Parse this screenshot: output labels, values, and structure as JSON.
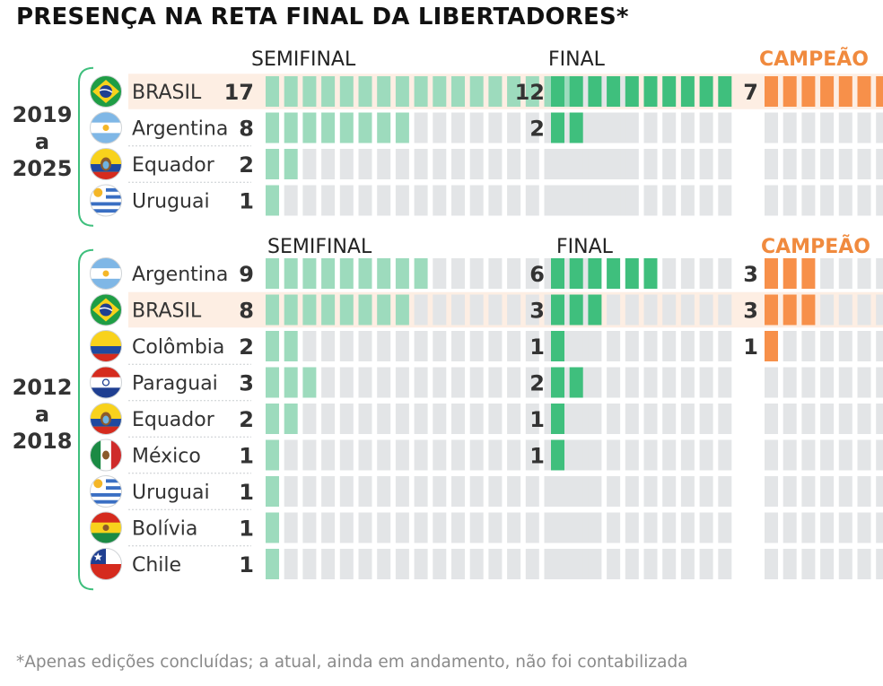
{
  "title": "PRESENÇA NA RETA FINAL DA LIBERTADORES*",
  "footnote": "*Apenas edições concluídas; a atual, ainda em andamento, não foi contabilizada",
  "colors": {
    "semifinal": "#9ddbbd",
    "final": "#3fbf7d",
    "campeao": "#f7904a",
    "campeao_label": "#f08a3e",
    "empty": "#e3e5e7",
    "highlight": "#fdeee3",
    "bracket": "#3fbf7d",
    "text": "#333333"
  },
  "chart_data": [
    {
      "type": "bar",
      "period": [
        "2019",
        "a",
        "2025"
      ],
      "column_labels": [
        "SEMIFINAL",
        "FINAL",
        "CAMPEÃO"
      ],
      "grid": {
        "semifinal": 20,
        "final": 10,
        "campeao": 8
      },
      "rows": [
        {
          "country": "BRASIL",
          "flag": "brazil-flag-icon",
          "highlight": true,
          "semifinal": 17,
          "final": 12,
          "campeao": 7
        },
        {
          "country": "Argentina",
          "flag": "argentina-flag-icon",
          "highlight": false,
          "semifinal": 8,
          "final": 2,
          "campeao": null
        },
        {
          "country": "Equador",
          "flag": "ecuador-flag-icon",
          "highlight": false,
          "semifinal": 2,
          "final": null,
          "campeao": null
        },
        {
          "country": "Uruguai",
          "flag": "uruguay-flag-icon",
          "highlight": false,
          "semifinal": 1,
          "final": null,
          "campeao": null
        }
      ]
    },
    {
      "type": "bar",
      "period": [
        "2012",
        "a",
        "2018"
      ],
      "column_labels": [
        "SEMIFINAL",
        "FINAL",
        "CAMPEÃO"
      ],
      "grid": {
        "semifinal": 18,
        "final": 10,
        "campeao": 8
      },
      "rows": [
        {
          "country": "Argentina",
          "flag": "argentina-flag-icon",
          "highlight": false,
          "semifinal": 9,
          "final": 6,
          "campeao": 3
        },
        {
          "country": "BRASIL",
          "flag": "brazil-flag-icon",
          "highlight": true,
          "semifinal": 8,
          "final": 3,
          "campeao": 3
        },
        {
          "country": "Colômbia",
          "flag": "colombia-flag-icon",
          "highlight": false,
          "semifinal": 2,
          "final": 1,
          "campeao": 1
        },
        {
          "country": "Paraguai",
          "flag": "paraguay-flag-icon",
          "highlight": false,
          "semifinal": 3,
          "final": 2,
          "campeao": null
        },
        {
          "country": "Equador",
          "flag": "ecuador-flag-icon",
          "highlight": false,
          "semifinal": 2,
          "final": 1,
          "campeao": null
        },
        {
          "country": "México",
          "flag": "mexico-flag-icon",
          "highlight": false,
          "semifinal": 1,
          "final": 1,
          "campeao": null
        },
        {
          "country": "Uruguai",
          "flag": "uruguay-flag-icon",
          "highlight": false,
          "semifinal": 1,
          "final": null,
          "campeao": null
        },
        {
          "country": "Bolívia",
          "flag": "bolivia-flag-icon",
          "highlight": false,
          "semifinal": 1,
          "final": null,
          "campeao": null
        },
        {
          "country": "Chile",
          "flag": "chile-flag-icon",
          "highlight": false,
          "semifinal": 1,
          "final": null,
          "campeao": null
        }
      ]
    }
  ]
}
